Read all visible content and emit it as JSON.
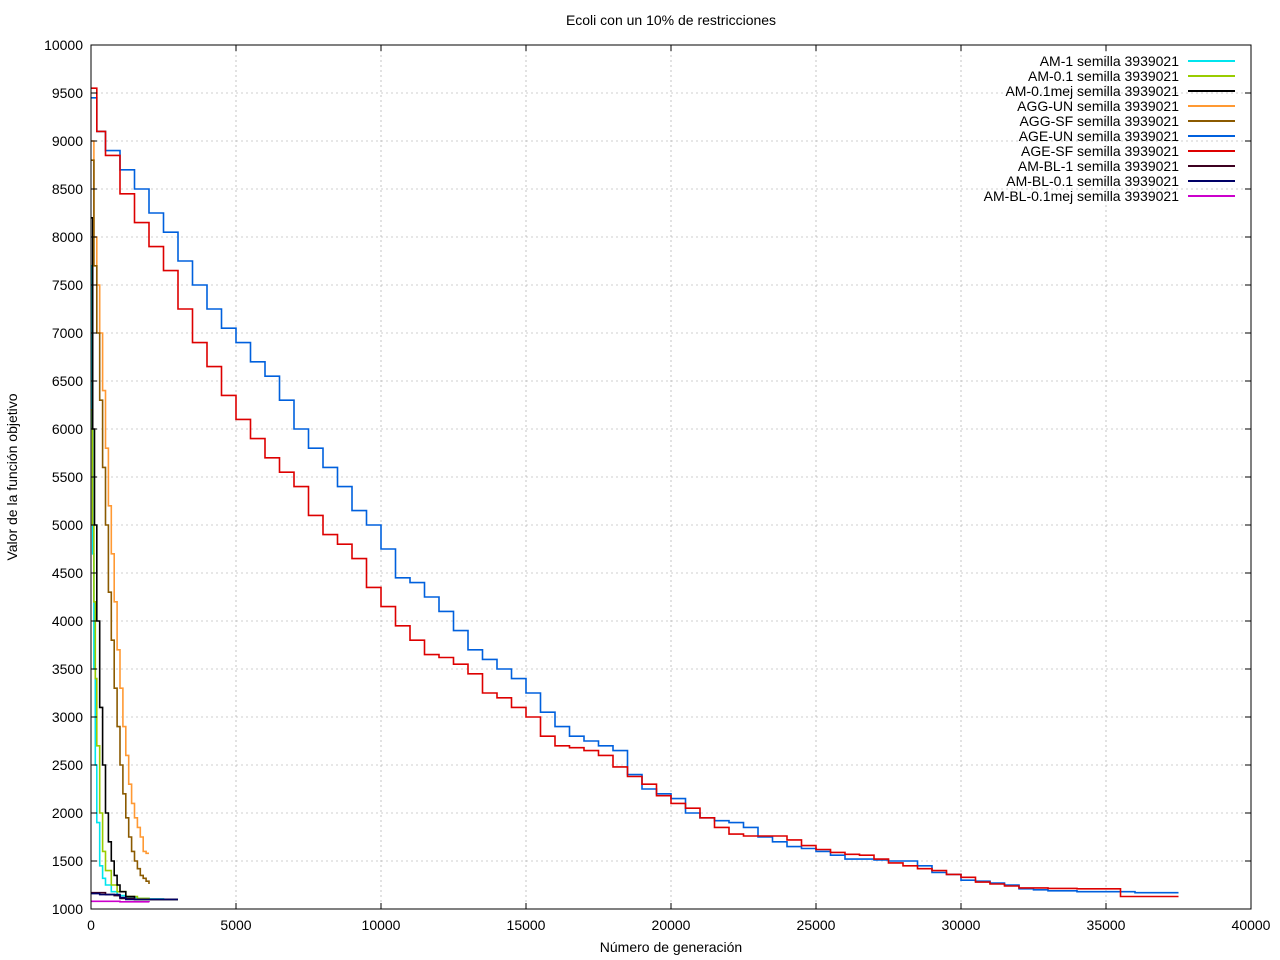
{
  "chart_data": {
    "type": "line",
    "title": "Ecoli con un 10% de restricciones",
    "xlabel": "Número de generación",
    "ylabel": "Valor de la función objetivo",
    "xlim": [
      0,
      40000
    ],
    "ylim": [
      1000,
      10000
    ],
    "xticks": [
      0,
      5000,
      10000,
      15000,
      20000,
      25000,
      30000,
      35000,
      40000
    ],
    "yticks": [
      1000,
      1500,
      2000,
      2500,
      3000,
      3500,
      4000,
      4500,
      5000,
      5500,
      6000,
      6500,
      7000,
      7500,
      8000,
      8500,
      9000,
      9500,
      10000
    ],
    "grid": true,
    "legend_position": "top-right",
    "series": [
      {
        "name": "AM-1 semilla 3939021",
        "color": "#00e5ee",
        "x": [
          0,
          30,
          60,
          100,
          150,
          200,
          300,
          400,
          500,
          700,
          900,
          1200,
          1600,
          2000,
          2500,
          3000
        ],
        "y": [
          7700,
          6000,
          4700,
          3500,
          2500,
          1900,
          1450,
          1320,
          1250,
          1180,
          1140,
          1120,
          1110,
          1105,
          1100,
          1100
        ]
      },
      {
        "name": "AM-0.1 semilla 3939021",
        "color": "#99cc00",
        "x": [
          0,
          50,
          100,
          150,
          200,
          300,
          400,
          500,
          700,
          900,
          1200,
          1600,
          2000,
          2500,
          3000
        ],
        "y": [
          6200,
          5000,
          4200,
          3400,
          2700,
          2000,
          1600,
          1400,
          1250,
          1180,
          1130,
          1110,
          1100,
          1100,
          1100
        ]
      },
      {
        "name": "AM-0.1mej semilla 3939021",
        "color": "#000000",
        "x": [
          0,
          60,
          120,
          200,
          300,
          400,
          500,
          600,
          700,
          800,
          900,
          1000,
          1200,
          1500,
          2000,
          2500,
          3000
        ],
        "y": [
          8200,
          6000,
          5000,
          4000,
          3100,
          2500,
          2000,
          1700,
          1500,
          1350,
          1250,
          1180,
          1130,
          1100,
          1100,
          1100,
          1100
        ]
      },
      {
        "name": "AGG-UN semilla 3939021",
        "color": "#ff9933",
        "x": [
          0,
          100,
          200,
          300,
          400,
          500,
          600,
          700,
          800,
          900,
          1000,
          1100,
          1200,
          1300,
          1400,
          1500,
          1600,
          1700,
          1800,
          1900,
          2000
        ],
        "y": [
          9000,
          8000,
          7500,
          7000,
          6400,
          5800,
          5200,
          4700,
          4200,
          3700,
          3300,
          2900,
          2600,
          2300,
          2100,
          1950,
          1850,
          1750,
          1600,
          1580,
          1580
        ]
      },
      {
        "name": "AGG-SF semilla 3939021",
        "color": "#8b5a00",
        "x": [
          0,
          100,
          200,
          300,
          400,
          500,
          600,
          700,
          800,
          900,
          1000,
          1100,
          1200,
          1300,
          1400,
          1500,
          1600,
          1700,
          1800,
          1900,
          2000
        ],
        "y": [
          8800,
          7700,
          7000,
          6300,
          5600,
          5000,
          4300,
          3800,
          3300,
          2900,
          2500,
          2200,
          1950,
          1750,
          1600,
          1500,
          1420,
          1350,
          1320,
          1290,
          1260
        ]
      },
      {
        "name": "AGE-UN semilla 3939021",
        "color": "#0060dd",
        "x": [
          0,
          200,
          500,
          1000,
          1500,
          2000,
          2500,
          3000,
          3500,
          4000,
          4500,
          5000,
          5500,
          6000,
          6500,
          7000,
          7500,
          8000,
          8500,
          9000,
          9500,
          10000,
          10500,
          11000,
          11500,
          12000,
          12500,
          13000,
          13500,
          14000,
          14500,
          15000,
          15500,
          16000,
          16500,
          17000,
          17500,
          18000,
          18500,
          19000,
          19500,
          20000,
          20500,
          21000,
          21500,
          22000,
          22500,
          23000,
          23500,
          24000,
          24500,
          25000,
          25500,
          26000,
          26500,
          27000,
          27500,
          28000,
          28500,
          29000,
          29500,
          30000,
          30500,
          31000,
          31500,
          32000,
          32500,
          33000,
          34000,
          35000,
          36000,
          37000,
          37500
        ],
        "y": [
          9450,
          9100,
          8900,
          8700,
          8500,
          8250,
          8050,
          7750,
          7500,
          7250,
          7050,
          6900,
          6700,
          6550,
          6300,
          6000,
          5800,
          5600,
          5400,
          5150,
          5000,
          4750,
          4450,
          4400,
          4250,
          4100,
          3900,
          3700,
          3600,
          3500,
          3400,
          3250,
          3050,
          2900,
          2800,
          2750,
          2700,
          2650,
          2400,
          2250,
          2200,
          2150,
          2000,
          1950,
          1920,
          1900,
          1850,
          1750,
          1700,
          1650,
          1630,
          1600,
          1560,
          1520,
          1520,
          1510,
          1500,
          1500,
          1450,
          1380,
          1360,
          1300,
          1290,
          1270,
          1250,
          1210,
          1200,
          1190,
          1180,
          1180,
          1170,
          1170,
          1170
        ]
      },
      {
        "name": "AGE-SF semilla 3939021",
        "color": "#dd0000",
        "x": [
          0,
          200,
          500,
          1000,
          1500,
          2000,
          2500,
          3000,
          3500,
          4000,
          4500,
          5000,
          5500,
          6000,
          6500,
          7000,
          7500,
          8000,
          8500,
          9000,
          9500,
          10000,
          10500,
          11000,
          11500,
          12000,
          12500,
          13000,
          13500,
          14000,
          14500,
          15000,
          15500,
          16000,
          16500,
          17000,
          17500,
          18000,
          18500,
          19000,
          19500,
          20000,
          20500,
          21000,
          21500,
          22000,
          22500,
          23000,
          23500,
          24000,
          24500,
          25000,
          25500,
          26000,
          26500,
          27000,
          27500,
          28000,
          28500,
          29000,
          29500,
          30000,
          30500,
          31000,
          31500,
          32000,
          33000,
          34000,
          35000,
          35500,
          36000,
          37000,
          37500
        ],
        "y": [
          9550,
          9100,
          8850,
          8450,
          8150,
          7900,
          7650,
          7250,
          6900,
          6650,
          6350,
          6100,
          5900,
          5700,
          5550,
          5400,
          5100,
          4900,
          4800,
          4650,
          4350,
          4150,
          3950,
          3800,
          3650,
          3620,
          3550,
          3450,
          3250,
          3200,
          3100,
          3000,
          2800,
          2700,
          2680,
          2650,
          2600,
          2480,
          2380,
          2300,
          2180,
          2100,
          2050,
          1950,
          1850,
          1780,
          1760,
          1760,
          1760,
          1720,
          1660,
          1620,
          1590,
          1570,
          1560,
          1520,
          1480,
          1450,
          1420,
          1400,
          1360,
          1330,
          1280,
          1260,
          1240,
          1220,
          1215,
          1210,
          1210,
          1130,
          1130,
          1130,
          1130
        ]
      },
      {
        "name": "AM-BL-1 semilla 3939021",
        "color": "#3d0020",
        "x": [
          0,
          200,
          500,
          800,
          1000,
          1500,
          2000,
          2500,
          3000
        ],
        "y": [
          1170,
          1170,
          1150,
          1140,
          1110,
          1100,
          1100,
          1100,
          1100
        ]
      },
      {
        "name": "AM-BL-0.1 semilla 3939021",
        "color": "#000066",
        "x": [
          0,
          300,
          600,
          900,
          1000,
          1200,
          1500,
          2000,
          2500,
          3000
        ],
        "y": [
          1160,
          1150,
          1150,
          1150,
          1120,
          1100,
          1100,
          1100,
          1100,
          1100
        ]
      },
      {
        "name": "AM-BL-0.1mej semilla 3939021",
        "color": "#cc00cc",
        "x": [
          0,
          500,
          1000,
          1500,
          2000
        ],
        "y": [
          1080,
          1080,
          1075,
          1075,
          1070
        ]
      }
    ]
  }
}
